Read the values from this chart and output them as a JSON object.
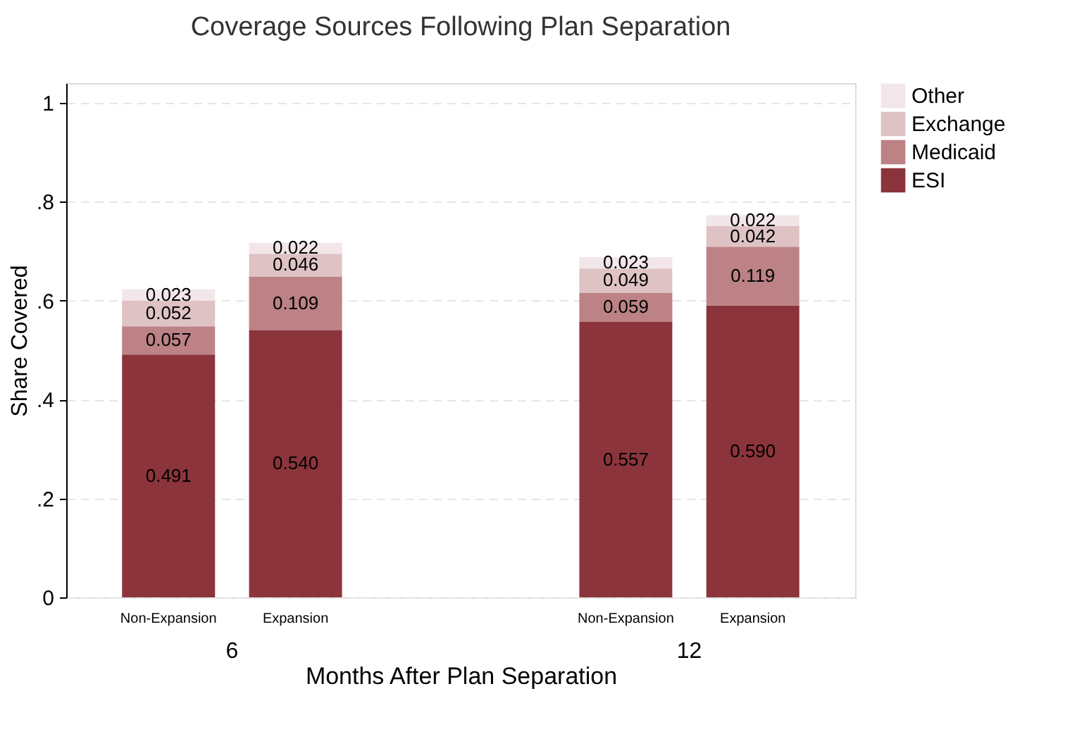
{
  "chart_data": {
    "type": "bar",
    "title": "Coverage Sources Following Plan Separation",
    "xlabel": "Months After Plan Separation",
    "ylabel": "Share Covered",
    "categories": [
      "Non-Expansion",
      "Expansion",
      "Non-Expansion",
      "Expansion"
    ],
    "annotations": [
      "6",
      "12"
    ],
    "stacked": true,
    "data_labels": true,
    "series": [
      {
        "name": "ESI",
        "color": "#8c343b",
        "values": [
          0.491,
          0.54,
          0.557,
          0.59
        ],
        "value_labels": [
          "0.491",
          "0.540",
          "0.557",
          "0.590"
        ]
      },
      {
        "name": "Medicaid",
        "color": "#bc8285",
        "values": [
          0.057,
          0.109,
          0.059,
          0.119
        ],
        "value_labels": [
          "0.057",
          "0.109",
          "0.059",
          "0.119"
        ]
      },
      {
        "name": "Exchange",
        "color": "#dec2c4",
        "values": [
          0.052,
          0.046,
          0.049,
          0.042
        ],
        "value_labels": [
          "0.052",
          "0.046",
          "0.049",
          "0.042"
        ]
      },
      {
        "name": "Other",
        "color": "#f2e6e8",
        "values": [
          0.023,
          0.022,
          0.023,
          0.022
        ],
        "value_labels": [
          "0.023",
          "0.022",
          "0.023",
          "0.022"
        ]
      }
    ],
    "ylim": [
      0,
      1.04
    ],
    "yticks": [
      0,
      {
        "value": 0.2,
        "label": ".2"
      },
      {
        "value": 0.4,
        "label": ".4"
      },
      {
        "value": 0.6,
        "label": ".6"
      },
      {
        "value": 0.8,
        "label": ".8"
      },
      1
    ],
    "grid": "y",
    "legend": "right"
  }
}
